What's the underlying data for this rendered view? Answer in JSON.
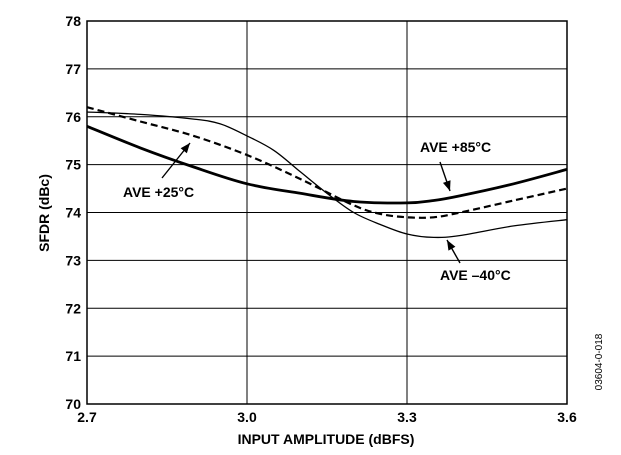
{
  "chart_data": {
    "type": "line",
    "title": "",
    "xlabel": "INPUT AMPLITUDE (dBFS)",
    "ylabel": "SFDR (dBc)",
    "xlim": [
      2.7,
      3.6
    ],
    "ylim": [
      70,
      78
    ],
    "x_ticks": [
      "2.7",
      "3.0",
      "3.3",
      "3.6"
    ],
    "y_ticks": [
      "70",
      "71",
      "72",
      "73",
      "74",
      "75",
      "76",
      "77",
      "78"
    ],
    "grid": true,
    "series": [
      {
        "name": "AVE +85°C",
        "style": "thick",
        "points": [
          [
            2.7,
            75.8
          ],
          [
            2.8,
            75.35
          ],
          [
            2.9,
            74.95
          ],
          [
            3.0,
            74.6
          ],
          [
            3.1,
            74.4
          ],
          [
            3.2,
            74.23
          ],
          [
            3.3,
            74.2
          ],
          [
            3.35,
            74.25
          ],
          [
            3.4,
            74.35
          ],
          [
            3.5,
            74.6
          ],
          [
            3.6,
            74.9
          ]
        ]
      },
      {
        "name": "AVE +25°C",
        "style": "dashed",
        "points": [
          [
            2.7,
            76.2
          ],
          [
            2.8,
            75.9
          ],
          [
            2.9,
            75.6
          ],
          [
            3.0,
            75.2
          ],
          [
            3.1,
            74.7
          ],
          [
            3.2,
            74.15
          ],
          [
            3.25,
            73.97
          ],
          [
            3.3,
            73.9
          ],
          [
            3.35,
            73.9
          ],
          [
            3.4,
            74.0
          ],
          [
            3.5,
            74.25
          ],
          [
            3.6,
            74.5
          ]
        ]
      },
      {
        "name": "AVE –40°C",
        "style": "thin",
        "points": [
          [
            2.7,
            76.1
          ],
          [
            2.8,
            76.05
          ],
          [
            2.9,
            75.95
          ],
          [
            2.95,
            75.85
          ],
          [
            3.0,
            75.6
          ],
          [
            3.05,
            75.3
          ],
          [
            3.1,
            74.85
          ],
          [
            3.15,
            74.4
          ],
          [
            3.2,
            74.0
          ],
          [
            3.25,
            73.75
          ],
          [
            3.3,
            73.55
          ],
          [
            3.35,
            73.48
          ],
          [
            3.4,
            73.52
          ],
          [
            3.5,
            73.72
          ],
          [
            3.6,
            73.85
          ]
        ]
      }
    ],
    "annotations": [
      {
        "text": "AVE +85°C",
        "series": 0
      },
      {
        "text": "AVE +25°C",
        "series": 1
      },
      {
        "text": "AVE –40°C",
        "series": 2
      }
    ],
    "figure_id": "03604-0-018"
  }
}
